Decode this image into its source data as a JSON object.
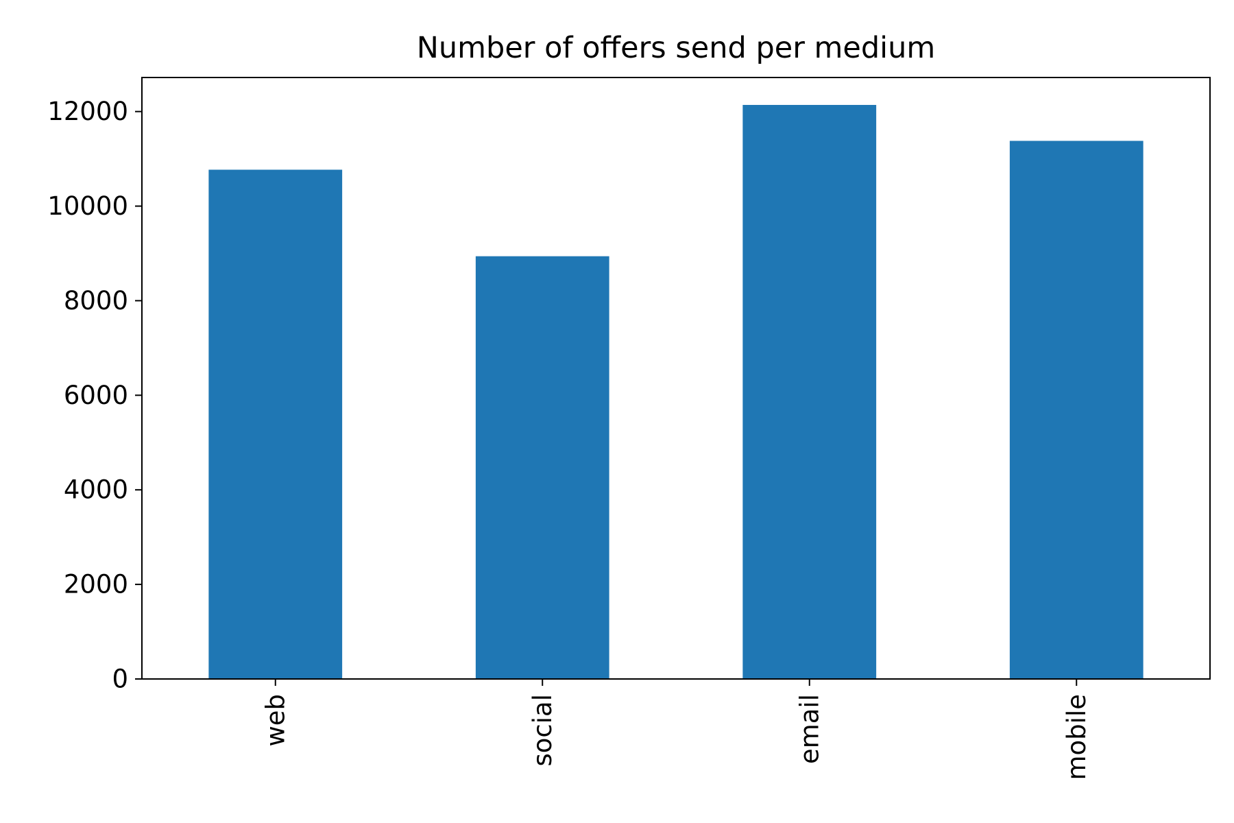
{
  "chart_data": {
    "type": "bar",
    "title": "Number of offers send per medium",
    "xlabel": "",
    "ylabel": "",
    "categories": [
      "web",
      "social",
      "email",
      "mobile"
    ],
    "values": [
      10770,
      8940,
      12140,
      11380
    ],
    "ylim": [
      0,
      12720
    ],
    "yticks": [
      0,
      2000,
      4000,
      6000,
      8000,
      10000,
      12000
    ],
    "ytick_labels": [
      "0",
      "2000",
      "4000",
      "6000",
      "8000",
      "10000",
      "12000"
    ],
    "bar_color": "#1f77b4",
    "grid": false,
    "legend": "none",
    "xtick_rotation": "vertical"
  }
}
